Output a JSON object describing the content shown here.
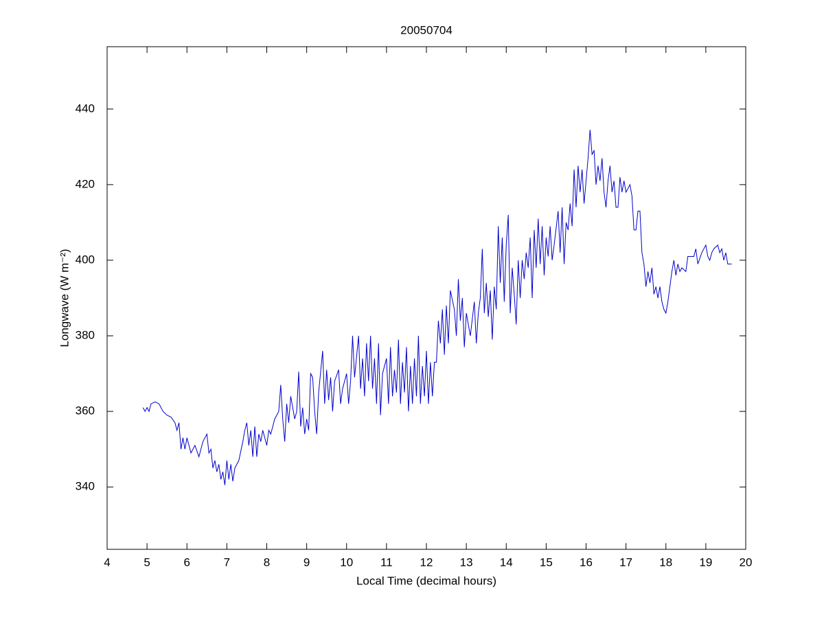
{
  "chart_data": {
    "type": "line",
    "title": "20050704",
    "xlabel": "Local Time (decimal hours)",
    "ylabel": "Longwave (W m⁻²)",
    "xlim": [
      4,
      20
    ],
    "ylim": [
      323.5,
      456.5
    ],
    "xticks": [
      4,
      5,
      6,
      7,
      8,
      9,
      10,
      11,
      12,
      13,
      14,
      15,
      16,
      17,
      18,
      19,
      20
    ],
    "yticks": [
      340,
      360,
      380,
      400,
      420,
      440
    ],
    "grid": false,
    "series": [
      {
        "color": "#0000c8",
        "x": [
          4.9,
          4.95,
          5.0,
          5.05,
          5.1,
          5.2,
          5.3,
          5.4,
          5.5,
          5.6,
          5.7,
          5.75,
          5.8,
          5.85,
          5.9,
          5.95,
          6.0,
          6.05,
          6.1,
          6.2,
          6.3,
          6.4,
          6.5,
          6.55,
          6.6,
          6.65,
          6.7,
          6.75,
          6.8,
          6.85,
          6.9,
          6.95,
          7.0,
          7.05,
          7.1,
          7.15,
          7.2,
          7.3,
          7.4,
          7.45,
          7.5,
          7.55,
          7.6,
          7.65,
          7.7,
          7.75,
          7.8,
          7.85,
          7.9,
          8.0,
          8.05,
          8.1,
          8.2,
          8.3,
          8.35,
          8.4,
          8.45,
          8.5,
          8.55,
          8.6,
          8.7,
          8.75,
          8.8,
          8.85,
          8.9,
          8.95,
          9.0,
          9.05,
          9.1,
          9.15,
          9.2,
          9.25,
          9.3,
          9.4,
          9.45,
          9.5,
          9.55,
          9.6,
          9.65,
          9.7,
          9.8,
          9.85,
          9.9,
          10.0,
          10.05,
          10.1,
          10.15,
          10.2,
          10.3,
          10.35,
          10.4,
          10.45,
          10.5,
          10.55,
          10.6,
          10.65,
          10.7,
          10.75,
          10.8,
          10.85,
          10.9,
          11.0,
          11.05,
          11.1,
          11.15,
          11.2,
          11.25,
          11.3,
          11.35,
          11.4,
          11.45,
          11.5,
          11.55,
          11.6,
          11.65,
          11.7,
          11.75,
          11.8,
          11.85,
          11.9,
          11.95,
          12.0,
          12.05,
          12.1,
          12.15,
          12.2,
          12.25,
          12.3,
          12.35,
          12.4,
          12.45,
          12.5,
          12.55,
          12.6,
          12.7,
          12.75,
          12.8,
          12.85,
          12.9,
          12.95,
          13.0,
          13.1,
          13.2,
          13.25,
          13.3,
          13.35,
          13.4,
          13.45,
          13.5,
          13.55,
          13.6,
          13.65,
          13.7,
          13.75,
          13.8,
          13.85,
          13.9,
          13.95,
          14.0,
          14.05,
          14.1,
          14.15,
          14.2,
          14.25,
          14.3,
          14.35,
          14.4,
          14.45,
          14.5,
          14.55,
          14.6,
          14.65,
          14.7,
          14.75,
          14.8,
          14.85,
          14.9,
          14.95,
          15.0,
          15.05,
          15.1,
          15.15,
          15.2,
          15.3,
          15.35,
          15.4,
          15.45,
          15.5,
          15.55,
          15.6,
          15.65,
          15.7,
          15.75,
          15.8,
          15.85,
          15.9,
          15.95,
          16.0,
          16.05,
          16.1,
          16.15,
          16.2,
          16.25,
          16.3,
          16.35,
          16.4,
          16.45,
          16.5,
          16.55,
          16.6,
          16.65,
          16.7,
          16.75,
          16.8,
          16.85,
          16.9,
          16.95,
          17.0,
          17.1,
          17.15,
          17.2,
          17.25,
          17.3,
          17.35,
          17.4,
          17.45,
          17.5,
          17.55,
          17.6,
          17.65,
          17.7,
          17.75,
          17.8,
          17.85,
          17.9,
          17.95,
          18.0,
          18.05,
          18.1,
          18.15,
          18.2,
          18.25,
          18.3,
          18.35,
          18.4,
          18.5,
          18.55,
          18.6,
          18.7,
          18.75,
          18.8,
          18.9,
          19.0,
          19.05,
          19.1,
          19.15,
          19.2,
          19.3,
          19.35,
          19.4,
          19.45,
          19.5,
          19.55,
          19.6,
          19.65
        ],
        "values": [
          361,
          360,
          361,
          360,
          362,
          362.5,
          362,
          360,
          359,
          358.5,
          357,
          355,
          357,
          350,
          353,
          350,
          353,
          351,
          349,
          351,
          348,
          352,
          354,
          349,
          350,
          345,
          347,
          344,
          346,
          342,
          344,
          340.5,
          347,
          342,
          346,
          341.5,
          345,
          347,
          352,
          355,
          357,
          351,
          355,
          348,
          356,
          348,
          354,
          352,
          355,
          351,
          355,
          354,
          358,
          360,
          367,
          358,
          352,
          362,
          357,
          364,
          358,
          360,
          370.5,
          356,
          361,
          354,
          358,
          355,
          370,
          369,
          360,
          354,
          365,
          376,
          362,
          371,
          363,
          369,
          360,
          368,
          371,
          362,
          366,
          370,
          362,
          368,
          380,
          369,
          380,
          366,
          374,
          364,
          378,
          368,
          380,
          366,
          374,
          362,
          378,
          359,
          370,
          374,
          362,
          377,
          364,
          371,
          365,
          379,
          362,
          373,
          365,
          377,
          360,
          372,
          362,
          374,
          364,
          380,
          362,
          372,
          364,
          376,
          362,
          373,
          364,
          373,
          373,
          384,
          378,
          387,
          375,
          388,
          378,
          392,
          387,
          380,
          395,
          384,
          390,
          377,
          386,
          380,
          389,
          378,
          386,
          390,
          403,
          386,
          394,
          385,
          392,
          379,
          393,
          387,
          409,
          394,
          406,
          389,
          404,
          412,
          386,
          398,
          391,
          383,
          400,
          390,
          400,
          395,
          402,
          398,
          406,
          390,
          408,
          398,
          411,
          399,
          409,
          396,
          406,
          401,
          409,
          400,
          404,
          413,
          402,
          414,
          399,
          410,
          408,
          415,
          409,
          424,
          414,
          425,
          418,
          424,
          415,
          421,
          427,
          434.5,
          428,
          429,
          420,
          425,
          421,
          427,
          418,
          414,
          421,
          425,
          418,
          421,
          414,
          414,
          422,
          418,
          421,
          418,
          420,
          417,
          408,
          408,
          413,
          413,
          402,
          399,
          393,
          397,
          394,
          398,
          391,
          393,
          390,
          393,
          389,
          387,
          386,
          389,
          393,
          397,
          400,
          396,
          399,
          397,
          398,
          397,
          401,
          401,
          401,
          403,
          399,
          402,
          404,
          401,
          400,
          402,
          403,
          404,
          402,
          403,
          400,
          402,
          399,
          399,
          399
        ]
      }
    ]
  }
}
